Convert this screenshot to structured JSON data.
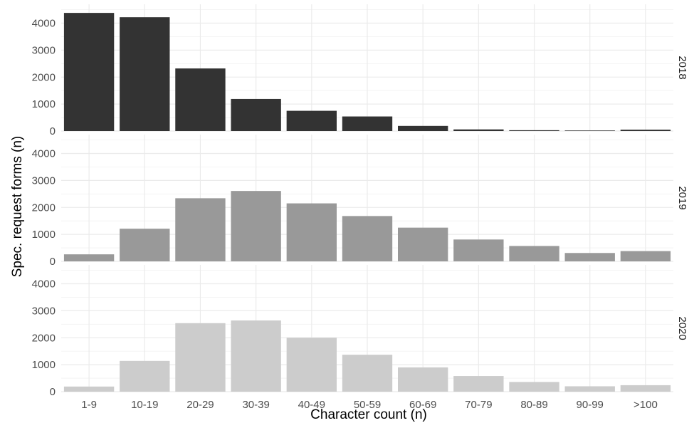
{
  "chart_data": {
    "type": "bar",
    "facet_layout": "rows",
    "xlabel": "Character count (n)",
    "ylabel": "Spec. request forms (n)",
    "ylim": [
      0,
      4700
    ],
    "y_ticks": [
      0,
      1000,
      2000,
      3000,
      4000
    ],
    "grid": true,
    "categories": [
      "1-9",
      "10-19",
      "20-29",
      "30-39",
      "40-49",
      "50-59",
      "60-69",
      "70-79",
      "80-89",
      "90-99",
      ">100"
    ],
    "panels": [
      {
        "strip_label": "2018",
        "color": "#333333",
        "values": [
          4380,
          4220,
          2320,
          1190,
          750,
          540,
          190,
          60,
          30,
          20,
          50
        ]
      },
      {
        "strip_label": "2019",
        "color": "#999999",
        "values": [
          260,
          1210,
          2340,
          2610,
          2150,
          1680,
          1250,
          810,
          570,
          310,
          380
        ]
      },
      {
        "strip_label": "2020",
        "color": "#cccccc",
        "values": [
          190,
          1140,
          2540,
          2640,
          2000,
          1370,
          900,
          580,
          360,
          200,
          240
        ]
      }
    ]
  }
}
